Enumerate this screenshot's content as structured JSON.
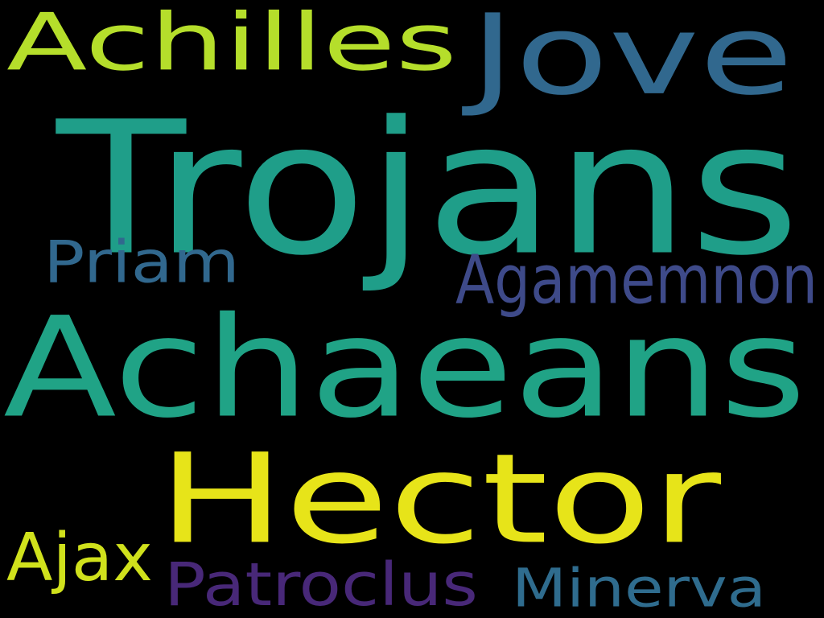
{
  "words": [
    {
      "text": "Achilles",
      "color": "#b5de2b"
    },
    {
      "text": "Jove",
      "color": "#31688e"
    },
    {
      "text": "Trojans",
      "color": "#1f9e89"
    },
    {
      "text": "Priam",
      "color": "#31688e"
    },
    {
      "text": "Agamemnon",
      "color": "#3e4a89"
    },
    {
      "text": "Achaeans",
      "color": "#20a386"
    },
    {
      "text": "Hector",
      "color": "#e7e419"
    },
    {
      "text": "Ajax",
      "color": "#d0e11c"
    },
    {
      "text": "Patroclus",
      "color": "#482878"
    },
    {
      "text": "Minerva",
      "color": "#2f6c8e"
    }
  ]
}
